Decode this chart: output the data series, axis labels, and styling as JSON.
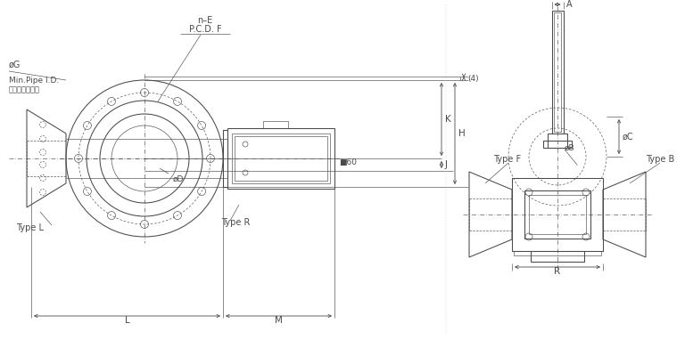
{
  "bg_color": "#ffffff",
  "lc": "#4a4a4a",
  "lw_thin": 0.45,
  "lw_med": 0.75,
  "lw_thick": 1.0,
  "fig_w": 7.68,
  "fig_h": 3.82,
  "dpi": 100,
  "labels": {
    "n_E": "n–E",
    "PCD_F": "P.C.D. F",
    "phi_G": "øG",
    "min_pipe": "Min.Pipe I.D.",
    "min_pipe_jp": "接続管最小内径",
    "phi_D": "øD",
    "type_L": "Type L",
    "type_R": "Type R",
    "dim_4": "(4)",
    "dim_K": "K",
    "dim_J": "J",
    "dim_H": "H",
    "dim_L": "L",
    "dim_M": "M",
    "dim_60": "■60",
    "dim_A": "A",
    "phi_B": "øB",
    "phi_C": "øC",
    "type_F": "Type F",
    "type_B": "Type B",
    "dim_R": "R"
  }
}
